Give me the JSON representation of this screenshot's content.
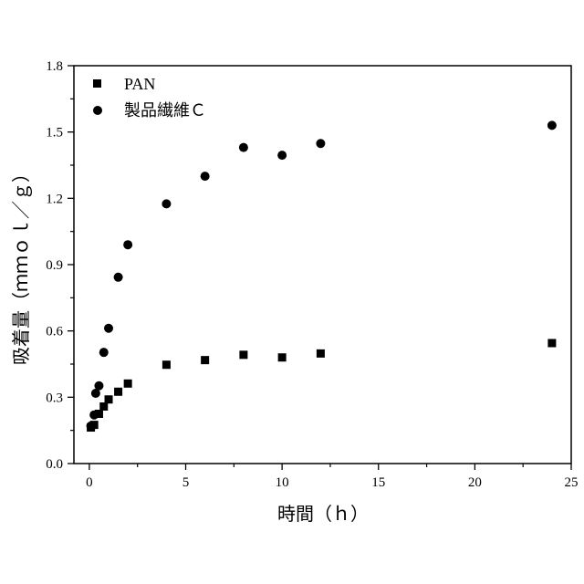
{
  "chart_data": {
    "type": "scatter",
    "xlabel": "時間（ｈ）",
    "ylabel": "吸着量（ｍｍｏｌ／ｇ）",
    "xlim": [
      -0.8,
      25
    ],
    "ylim": [
      0,
      1.8
    ],
    "xticks": [
      "0",
      "5",
      "10",
      "15",
      "20",
      "25"
    ],
    "yticks": [
      "0.0",
      "0.3",
      "0.6",
      "0.9",
      "1.2",
      "1.5",
      "1.8"
    ],
    "legend_position": "top-left",
    "series": [
      {
        "name": "PAN",
        "marker": "square",
        "color": "#000000",
        "x": [
          0.08,
          0.25,
          0.5,
          0.75,
          1.0,
          1.5,
          2.0,
          4.0,
          6.0,
          8.0,
          10.0,
          12.0,
          24.0
        ],
        "y": [
          0.163,
          0.175,
          0.225,
          0.258,
          0.29,
          0.325,
          0.362,
          0.447,
          0.468,
          0.492,
          0.48,
          0.498,
          0.545
        ]
      },
      {
        "name": "製品繊維Ｃ",
        "marker": "circle",
        "color": "#000000",
        "x": [
          0.08,
          0.25,
          0.33,
          0.5,
          0.75,
          1.0,
          1.5,
          2.0,
          4.0,
          6.0,
          8.0,
          10.0,
          12.0,
          24.0
        ],
        "y": [
          0.17,
          0.22,
          0.318,
          0.352,
          0.503,
          0.612,
          0.843,
          0.99,
          1.175,
          1.3,
          1.43,
          1.395,
          1.448,
          1.53
        ]
      }
    ]
  }
}
